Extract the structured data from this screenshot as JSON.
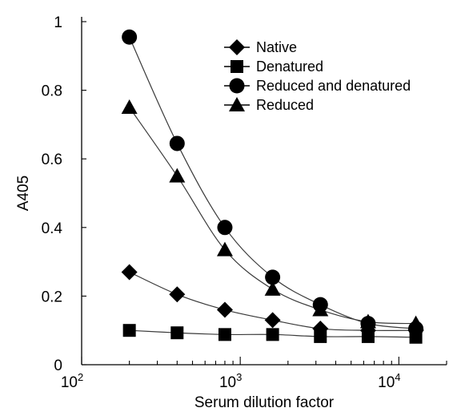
{
  "chart_data": {
    "type": "line",
    "title": "",
    "xlabel": "Serum dilution factor",
    "ylabel": "A405",
    "xscale": "log",
    "xlim": [
      100,
      20000
    ],
    "ylim": [
      0,
      1
    ],
    "grid": false,
    "legend_position": "top-right",
    "x_ticks": [
      {
        "value": 100,
        "base": "10",
        "exp": "2"
      },
      {
        "value": 1000,
        "base": "10",
        "exp": "3"
      },
      {
        "value": 10000,
        "base": "10",
        "exp": "4"
      }
    ],
    "y_ticks": [
      "0",
      "0.2",
      "0.4",
      "0.6",
      "0.8",
      "1"
    ],
    "x": [
      200,
      400,
      800,
      1600,
      3200,
      6400,
      12800
    ],
    "series": [
      {
        "name": "Native",
        "marker": "diamond",
        "values": [
          0.27,
          0.205,
          0.16,
          0.13,
          0.105,
          0.1,
          0.1
        ]
      },
      {
        "name": "Denatured",
        "marker": "square",
        "values": [
          0.1,
          0.093,
          0.088,
          0.088,
          0.082,
          0.082,
          0.08
        ]
      },
      {
        "name": "Reduced and denatured",
        "marker": "circle",
        "values": [
          0.955,
          0.645,
          0.4,
          0.255,
          0.175,
          0.12,
          0.105
        ]
      },
      {
        "name": "Reduced",
        "marker": "triangle",
        "values": [
          0.75,
          0.55,
          0.335,
          0.22,
          0.16,
          0.125,
          0.12
        ]
      }
    ]
  }
}
